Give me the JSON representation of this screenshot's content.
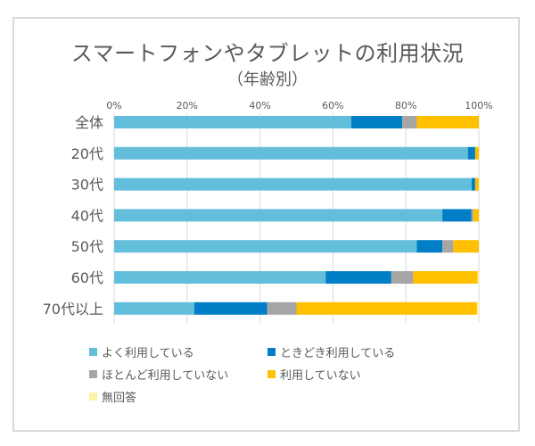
{
  "chart_data": {
    "type": "bar",
    "orientation": "horizontal",
    "stacked": true,
    "percent": true,
    "title": "スマートフォンやタブレットの利用状況",
    "subtitle": "（年齢別）",
    "xlabel": "",
    "ylabel": "",
    "xlim": [
      0,
      100
    ],
    "x_ticks": [
      "0%",
      "20%",
      "40%",
      "60%",
      "80%",
      "100%"
    ],
    "x_tick_values": [
      0,
      20,
      40,
      60,
      80,
      100
    ],
    "x_axis_position": "top",
    "grid": true,
    "legend_position": "bottom",
    "categories": [
      "全体",
      "20代",
      "30代",
      "40代",
      "50代",
      "60代",
      "70代以上"
    ],
    "series": [
      {
        "name": "よく利用している",
        "color": "#63bedb",
        "values": [
          65,
          97,
          98,
          90,
          83,
          58,
          22
        ]
      },
      {
        "name": "ときどき利用している",
        "color": "#007fc6",
        "values": [
          14,
          2,
          1,
          8,
          7,
          18,
          20
        ]
      },
      {
        "name": "ほとんど利用していない",
        "color": "#a6a6a6",
        "values": [
          4,
          0,
          0,
          0.5,
          3,
          6,
          8
        ]
      },
      {
        "name": "利用していない",
        "color": "#ffc000",
        "values": [
          17,
          1,
          1,
          1.5,
          7,
          17.7,
          49.5
        ]
      },
      {
        "name": "無回答",
        "color": "#fff2a8",
        "values": [
          0,
          0,
          0,
          0,
          0,
          0.3,
          0.5
        ]
      }
    ]
  }
}
